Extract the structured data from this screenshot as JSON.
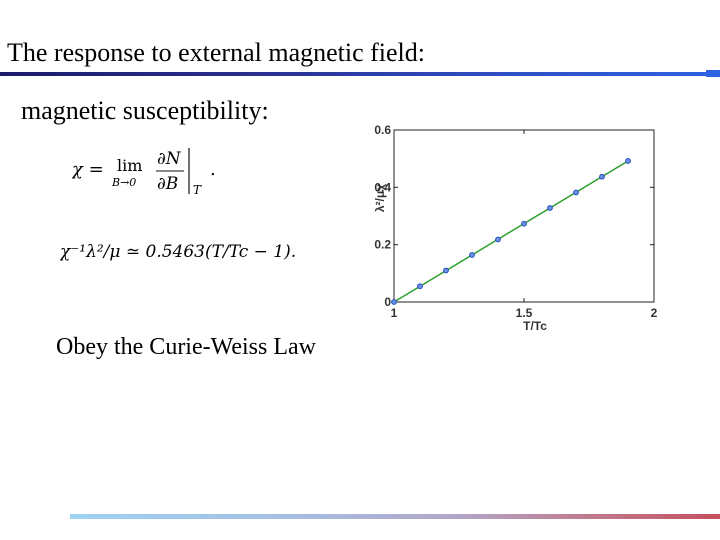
{
  "title": "The response to external magnetic field:",
  "subtitle": "magnetic susceptibility:",
  "equation_1": {
    "lhs": "χ =",
    "lim": "lim",
    "lim_sub": "B→0",
    "numerator": "∂N",
    "denominator": "∂B",
    "eval_sub": "T",
    "period": "."
  },
  "equation_2": "χ⁻¹λ²/μ ≃ 0.5463(T/Tc − 1).",
  "conclusion": "Obey the Curie-Weiss Law",
  "colors": {
    "title_rule": "#2d62e3",
    "bottom_rule_start": "#9fd2f2",
    "bottom_rule_end": "#c4505f",
    "line": "#2ca02c",
    "markers": "#1f4fc4"
  },
  "chart_data": {
    "type": "scatter",
    "xlabel": "T/Tc",
    "ylabel": "λ²/μχ",
    "xlim": [
      1,
      2
    ],
    "ylim": [
      0,
      0.6
    ],
    "x_ticks": [
      1,
      1.5,
      2
    ],
    "x_tick_labels": [
      "1",
      "1.5",
      "2"
    ],
    "y_ticks": [
      0,
      0.2,
      0.4,
      0.6
    ],
    "y_tick_labels": [
      "0",
      "0.2",
      "0.4",
      "0.6"
    ],
    "grid": false,
    "points": {
      "x": [
        1.0,
        1.1,
        1.2,
        1.3,
        1.4,
        1.5,
        1.6,
        1.7,
        1.8,
        1.9
      ],
      "y": [
        0.0,
        0.055,
        0.11,
        0.164,
        0.218,
        0.273,
        0.328,
        0.382,
        0.437,
        0.492
      ]
    },
    "fit_line": {
      "x": [
        1.0,
        1.9
      ],
      "y": [
        0.0,
        0.492
      ]
    }
  }
}
